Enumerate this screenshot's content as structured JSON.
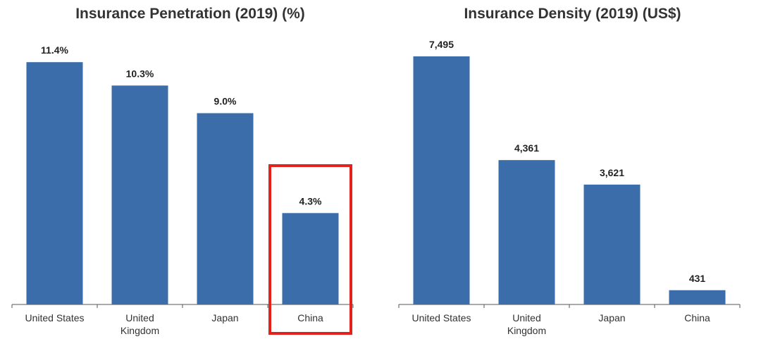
{
  "chart_data": [
    {
      "type": "bar",
      "title": "Insurance Penetration (2019) (%)",
      "categories": [
        "United States",
        "United Kingdom",
        "Japan",
        "China"
      ],
      "category_lines": [
        [
          "United States"
        ],
        [
          "United",
          "Kingdom"
        ],
        [
          "Japan"
        ],
        [
          "China"
        ]
      ],
      "values": [
        11.4,
        10.3,
        9.0,
        4.3
      ],
      "value_labels": [
        "11.4%",
        "10.3%",
        "9.0%",
        "4.3%"
      ],
      "ylim": [
        0,
        12.6
      ],
      "xlabel": "",
      "ylabel": "",
      "highlight": "China",
      "color": "#3a6daa",
      "highlight_color": "#e3231b"
    },
    {
      "type": "bar",
      "title": "Insurance Density (2019) (US$)",
      "categories": [
        "United States",
        "United Kingdom",
        "Japan",
        "China"
      ],
      "category_lines": [
        [
          "United States"
        ],
        [
          "United",
          "Kingdom"
        ],
        [
          "Japan"
        ],
        [
          "China"
        ]
      ],
      "values": [
        7495,
        4361,
        3621,
        431
      ],
      "value_labels": [
        "7,495",
        "4,361",
        "3,621",
        "431"
      ],
      "ylim": [
        0,
        8090
      ],
      "xlabel": "",
      "ylabel": "",
      "color": "#3a6daa"
    }
  ]
}
